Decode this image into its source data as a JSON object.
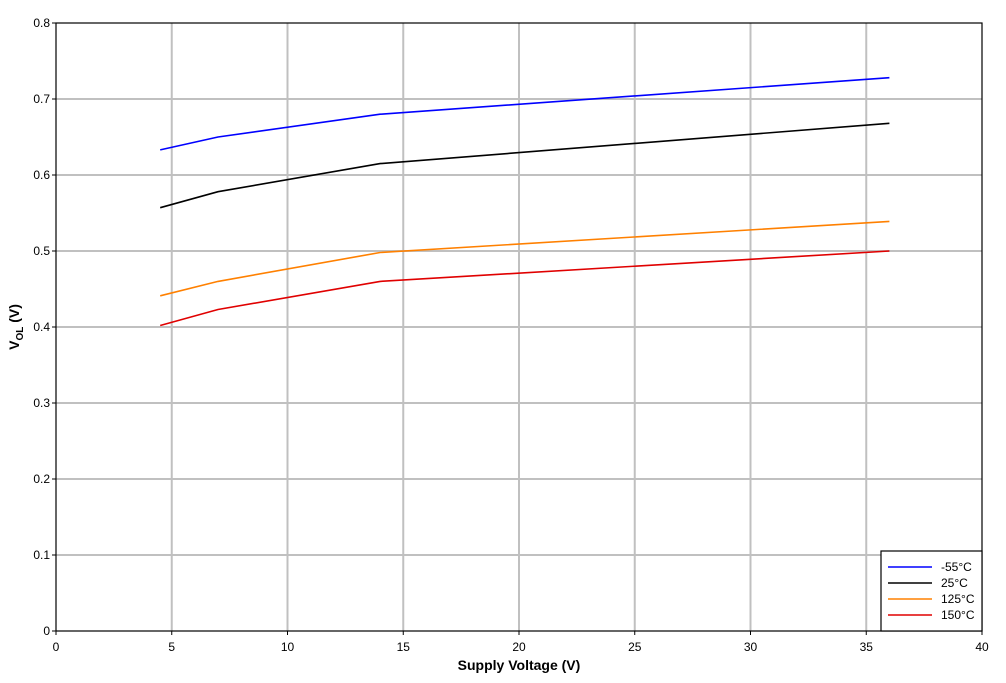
{
  "chart_data": {
    "type": "line",
    "title": "",
    "xlabel": "Supply Voltage (V)",
    "ylabel_main": "V",
    "ylabel_sub": "OL",
    "ylabel_unit": " (V)",
    "xlim": [
      0,
      40
    ],
    "ylim": [
      0,
      0.8
    ],
    "xticks": [
      0,
      5,
      10,
      15,
      20,
      25,
      30,
      35,
      40
    ],
    "yticks": [
      0,
      0.1,
      0.2,
      0.3,
      0.4,
      0.5,
      0.6,
      0.7,
      0.8
    ],
    "xtick_labels": [
      "0",
      "5",
      "10",
      "15",
      "20",
      "25",
      "30",
      "35",
      "40"
    ],
    "ytick_labels": [
      "0",
      "0.1",
      "0.2",
      "0.3",
      "0.4",
      "0.5",
      "0.6",
      "0.7",
      "0.8"
    ],
    "grid": true,
    "legend_position": "bottom-right",
    "x": [
      4.5,
      7,
      14,
      36
    ],
    "series": [
      {
        "name": "-55°C",
        "color": "#0000ff",
        "values": [
          0.633,
          0.65,
          0.68,
          0.728
        ]
      },
      {
        "name": "25°C",
        "color": "#000000",
        "values": [
          0.557,
          0.578,
          0.615,
          0.668
        ]
      },
      {
        "name": "125°C",
        "color": "#ff8000",
        "values": [
          0.441,
          0.46,
          0.498,
          0.539
        ]
      },
      {
        "name": "150°C",
        "color": "#e00000",
        "values": [
          0.402,
          0.423,
          0.46,
          0.5
        ]
      }
    ]
  }
}
